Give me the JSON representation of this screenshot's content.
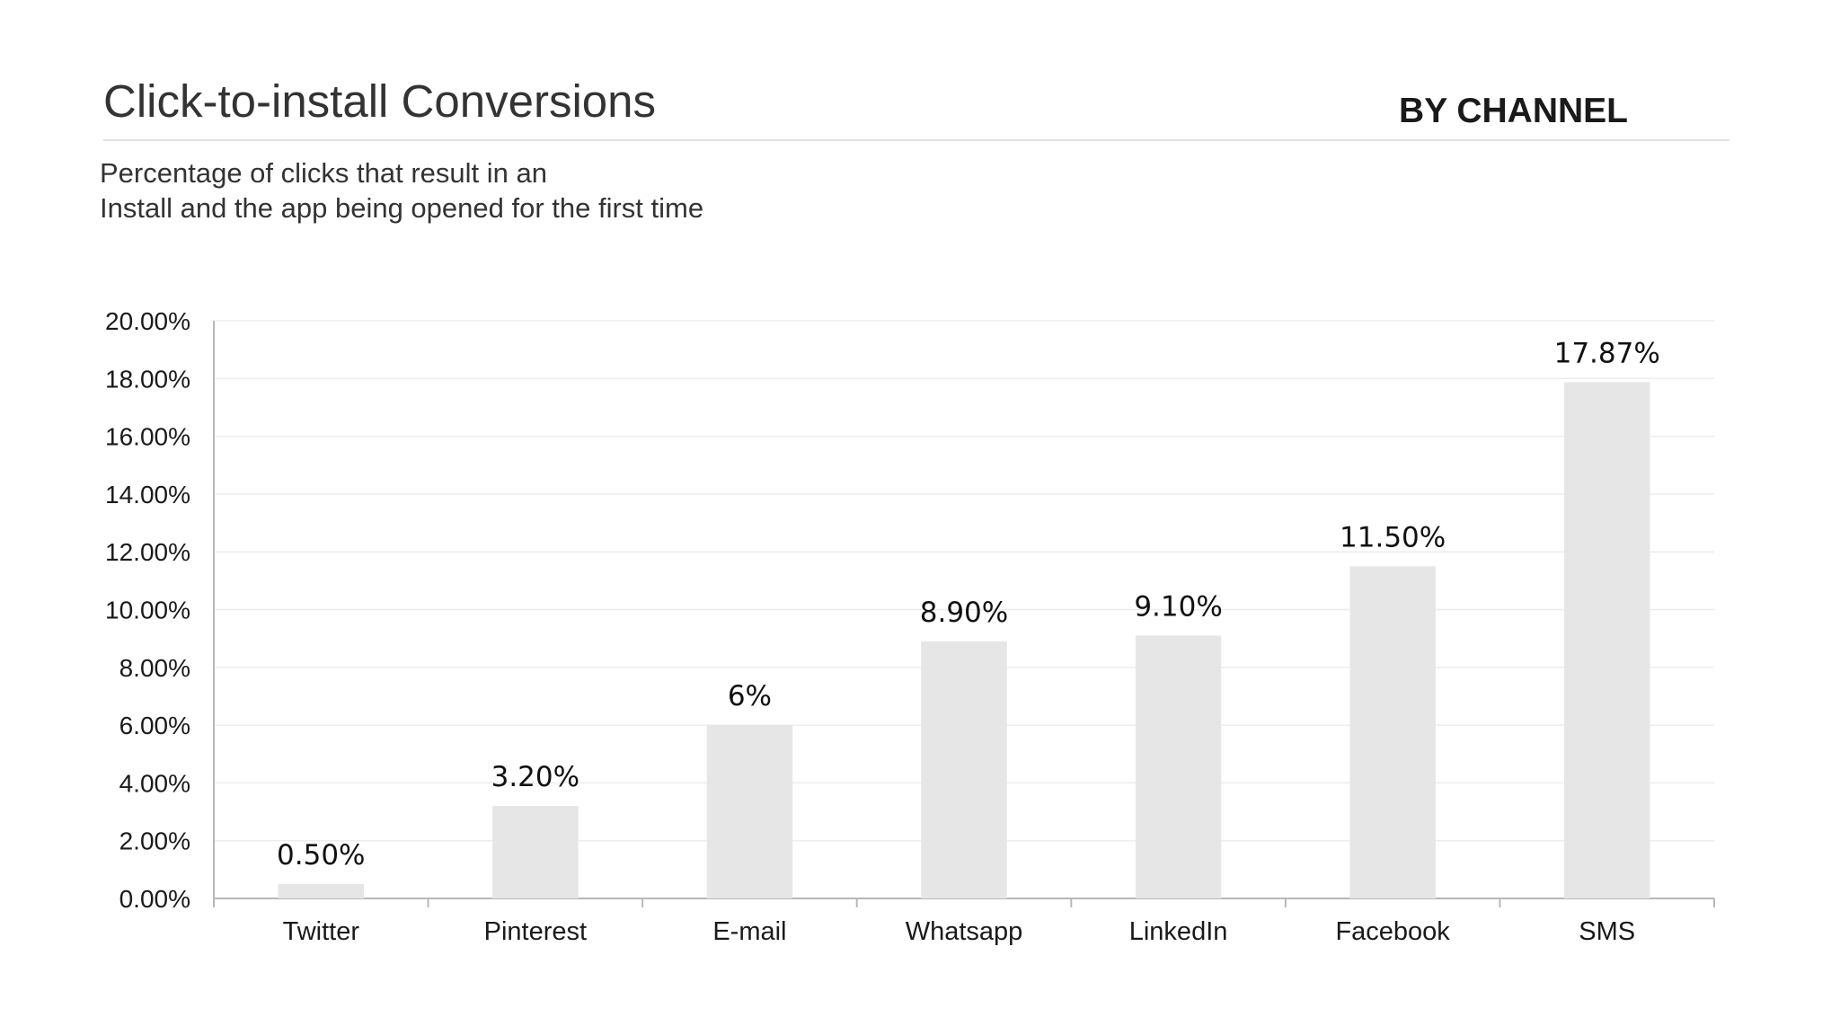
{
  "header": {
    "title": "Click-to-install Conversions",
    "section_label": "BY CHANNEL",
    "subtitle_line1": "Percentage of clicks that result in an",
    "subtitle_line2": "Install and the app being opened for the first time"
  },
  "colors": {
    "bar": "#e6e6e6",
    "axis": "#b8b8b8",
    "gridline": "#ededed",
    "rule": "#e2e2e2"
  },
  "chart_data": {
    "type": "bar",
    "categories": [
      "Twitter",
      "Pinterest",
      "E-mail",
      "Whatsapp",
      "LinkedIn",
      "Facebook",
      "SMS"
    ],
    "values": [
      0.5,
      3.2,
      6,
      8.9,
      9.1,
      11.5,
      17.87
    ],
    "data_labels": [
      "0.50%",
      "3.20%",
      "6%",
      "8.90%",
      "9.10%",
      "11.50%",
      "17.87%"
    ],
    "ylim": [
      0,
      20
    ],
    "yticks": [
      0,
      2,
      4,
      6,
      8,
      10,
      12,
      14,
      16,
      18,
      20
    ],
    "ytick_labels": [
      "0.00%",
      "2.00%",
      "4.00%",
      "6.00%",
      "8.00%",
      "10.00%",
      "12.00%",
      "14.00%",
      "16.00%",
      "18.00%",
      "20.00%"
    ],
    "grid": true,
    "legend": "none"
  }
}
